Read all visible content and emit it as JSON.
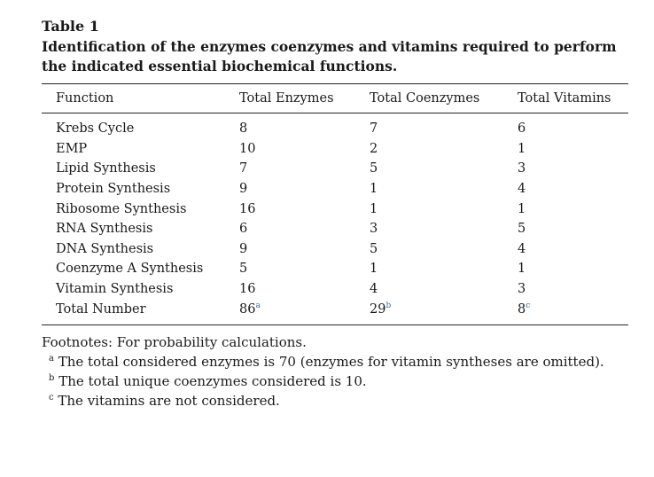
{
  "table": {
    "label": "Table 1",
    "caption": "Identification of the enzymes coenzymes and vitamins required to perform the indicated essential biochemical functions.",
    "headers": [
      "Function",
      "Total Enzymes",
      "Total Coenzymes",
      "Total Vitamins"
    ],
    "rows": [
      [
        "Krebs Cycle",
        "8",
        "7",
        "6"
      ],
      [
        "EMP",
        "10",
        "2",
        "1"
      ],
      [
        "Lipid Synthesis",
        "7",
        "5",
        "3"
      ],
      [
        "Protein Synthesis",
        "9",
        "1",
        "4"
      ],
      [
        "Ribosome Synthesis",
        "16",
        "1",
        "1"
      ],
      [
        "RNA Synthesis",
        "6",
        "3",
        "5"
      ],
      [
        "DNA Synthesis",
        "9",
        "5",
        "4"
      ],
      [
        "Coenzyme A Synthesis",
        "5",
        "1",
        "1"
      ],
      [
        "Vitamin Synthesis",
        "16",
        "4",
        "3"
      ]
    ],
    "total_row": {
      "label": "Total Number",
      "enzymes": "86",
      "enzymes_note": "a",
      "coenzymes": "29",
      "coenzymes_note": "b",
      "vitamins": "8",
      "vitamins_note": "c"
    }
  },
  "footnotes": {
    "intro": "Footnotes: For probability calculations.",
    "items": [
      {
        "mark": "a",
        "text": "The total considered enzymes is 70 (enzymes for vitamin syntheses are omitted)."
      },
      {
        "mark": "b",
        "text": "The total unique coenzymes considered is 10."
      },
      {
        "mark": "c",
        "text": "The vitamins are not considered."
      }
    ]
  }
}
